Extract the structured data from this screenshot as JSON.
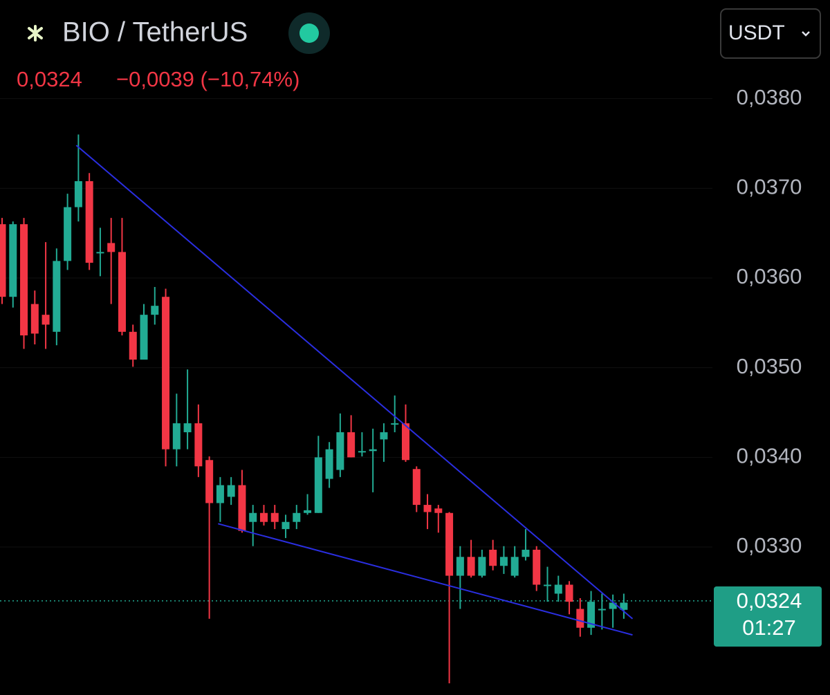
{
  "header": {
    "symbol": "BIO / TetherUS",
    "price": "0,0324",
    "change": "−0,0039 (−10,74%)",
    "currency": "USDT",
    "timer": "01:27"
  },
  "chart_data": {
    "type": "candlestick",
    "open": [
      0.0366,
      0.03579,
      0.0366,
      0.03571,
      0.03559,
      0.0354,
      0.03619,
      0.03679,
      0.03708,
      0.03629,
      0.03639,
      0.03629,
      0.0354,
      0.03509,
      0.03559,
      0.03579,
      0.03409,
      0.03428,
      0.03438,
      0.03397,
      0.03349,
      0.03356,
      0.03369,
      0.03328,
      0.03338,
      0.03338,
      0.0332,
      0.03328,
      0.03338,
      0.03338,
      0.03376,
      0.03386,
      0.03428,
      0.03407,
      0.03407,
      0.0342,
      0.03438,
      0.03438,
      0.03387,
      0.03347,
      0.03343,
      0.03338,
      0.03268,
      0.03289,
      0.03268,
      0.03297,
      0.03279,
      0.03268,
      0.03289,
      0.03297,
      0.03258,
      0.03248,
      0.03258,
      0.03231,
      0.0321,
      0.03231,
      0.03231,
      0.0323
    ],
    "high": [
      0.03667,
      0.03663,
      0.03667,
      0.03586,
      0.0364,
      0.03633,
      0.03694,
      0.0376,
      0.03717,
      0.03656,
      0.03667,
      0.03667,
      0.03548,
      0.03571,
      0.0359,
      0.03588,
      0.03471,
      0.03498,
      0.03459,
      0.03401,
      0.03378,
      0.03378,
      0.03386,
      0.03347,
      0.03347,
      0.03347,
      0.03336,
      0.03347,
      0.03359,
      0.03424,
      0.03417,
      0.03449,
      0.03447,
      0.03428,
      0.03432,
      0.03438,
      0.03469,
      0.03459,
      0.0339,
      0.03359,
      0.03347,
      0.03339,
      0.03301,
      0.03308,
      0.03297,
      0.03308,
      0.03301,
      0.03301,
      0.0332,
      0.03301,
      0.03278,
      0.03268,
      0.03262,
      0.03243,
      0.03251,
      0.03248,
      0.03247,
      0.03248
    ],
    "low": [
      0.03571,
      0.03567,
      0.03521,
      0.03526,
      0.03521,
      0.03525,
      0.03609,
      0.03663,
      0.03609,
      0.03602,
      0.03571,
      0.03536,
      0.03501,
      0.03509,
      0.03548,
      0.0339,
      0.0339,
      0.03409,
      0.03378,
      0.0322,
      0.03328,
      0.03347,
      0.03316,
      0.03301,
      0.03324,
      0.0332,
      0.0331,
      0.0332,
      0.03336,
      0.03338,
      0.03366,
      0.03378,
      0.034,
      0.03401,
      0.03361,
      0.03395,
      0.03428,
      0.03395,
      0.03339,
      0.0332,
      0.03316,
      0.03148,
      0.03231,
      0.03266,
      0.03266,
      0.03274,
      0.0327,
      0.03266,
      0.03285,
      0.03251,
      0.03239,
      0.03239,
      0.03225,
      0.032,
      0.03202,
      0.03208,
      0.0321,
      0.0322
    ],
    "close": [
      0.03579,
      0.0366,
      0.03536,
      0.03538,
      0.03548,
      0.03619,
      0.03679,
      0.03708,
      0.03617,
      0.03629,
      0.03629,
      0.0354,
      0.03509,
      0.03559,
      0.03569,
      0.03409,
      0.03438,
      0.03438,
      0.0339,
      0.03349,
      0.03369,
      0.03369,
      0.03318,
      0.03338,
      0.03328,
      0.03328,
      0.03328,
      0.03338,
      0.03341,
      0.034,
      0.03409,
      0.03428,
      0.034,
      0.03407,
      0.03409,
      0.03428,
      0.03438,
      0.03397,
      0.03347,
      0.03339,
      0.03338,
      0.03268,
      0.03289,
      0.03268,
      0.03289,
      0.03279,
      0.03289,
      0.03289,
      0.03297,
      0.03258,
      0.03258,
      0.03258,
      0.03239,
      0.0321,
      0.03239,
      0.03231,
      0.03238,
      0.03238
    ],
    "up_color": "#22ab94",
    "down_color": "#f23645",
    "ylim": [
      0.03135,
      0.0391
    ],
    "yticks": [
      {
        "value": 0.038,
        "label": "0,0380"
      },
      {
        "value": 0.037,
        "label": "0,0370"
      },
      {
        "value": 0.036,
        "label": "0,0360"
      },
      {
        "value": 0.035,
        "label": "0,0350"
      },
      {
        "value": 0.034,
        "label": "0,0340"
      },
      {
        "value": 0.033,
        "label": "0,0330"
      }
    ],
    "last_price": {
      "value": 0.0324,
      "label": "0,0324"
    },
    "trendlines": [
      {
        "x": [
          6.8,
          57.8
        ],
        "values": [
          0.03748,
          0.0322
        ],
        "color": "#2a2ee0"
      },
      {
        "x": [
          19.8,
          57.8
        ],
        "values": [
          0.03326,
          0.03202
        ],
        "color": "#2a2ee0"
      }
    ]
  }
}
